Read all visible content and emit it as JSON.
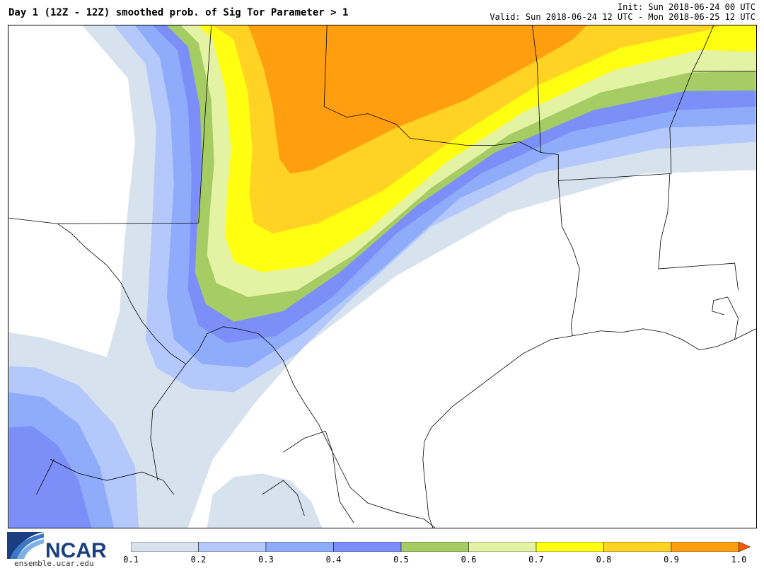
{
  "header": {
    "title": "Day 1 (12Z - 12Z) smoothed prob. of Sig Tor Parameter > 1",
    "init": "Init: Sun 2018-06-24 00 UTC",
    "valid": "Valid: Sun 2018-06-24 12 UTC - Mon 2018-06-25 12 UTC"
  },
  "logo": {
    "text": "NCAR",
    "url": "ensemble.ucar.edu"
  },
  "colorbar": {
    "ticks": [
      "0.1",
      "0.2",
      "0.3",
      "0.4",
      "0.5",
      "0.6",
      "0.7",
      "0.8",
      "0.9",
      "1.0"
    ],
    "colors": [
      "#d6e2ee",
      "#b4c8fc",
      "#8eacfa",
      "#7c8ef8",
      "#a6cc64",
      "#e4f2a4",
      "#ffff12",
      "#ffd224",
      "#ff9e0f"
    ],
    "extend_color": "#ff5a00"
  },
  "map": {
    "band_colors": [
      "#d6e2ee",
      "#b4c8fc",
      "#8eacfa",
      "#7c8ef8",
      "#a6cc64",
      "#e4f2a4",
      "#ffff12",
      "#ffd224",
      "#ff9e0f"
    ],
    "features": [
      "probability-contours",
      "state-borders",
      "coastline",
      "us-mexico-border"
    ]
  }
}
